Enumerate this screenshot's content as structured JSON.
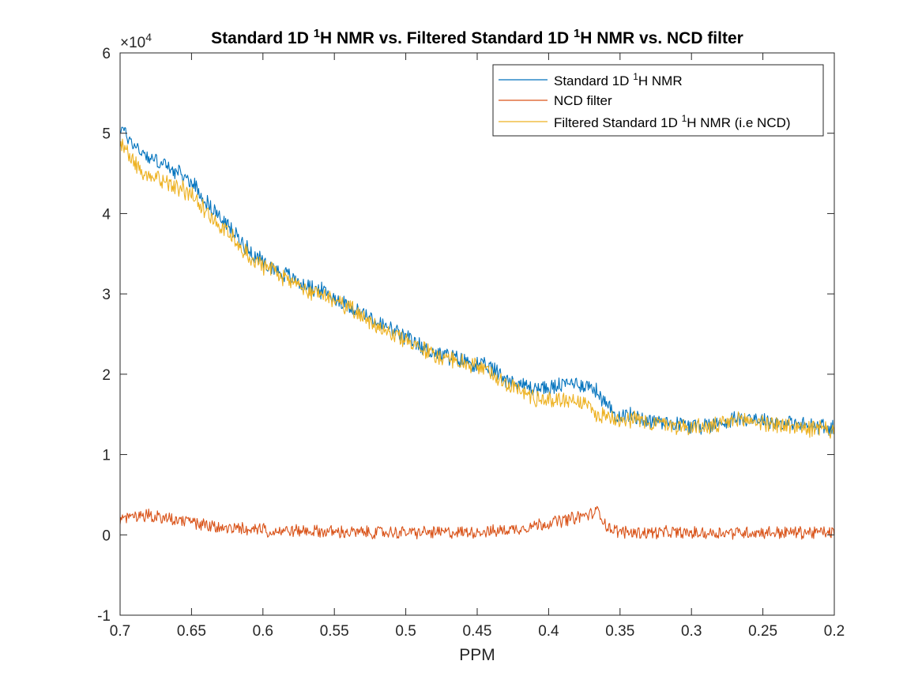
{
  "chart_data": {
    "type": "line",
    "title_parts": [
      "Standard 1D ",
      "1",
      "H NMR vs. Filtered Standard 1D ",
      "1",
      "H NMR vs. NCD filter"
    ],
    "xlabel": "PPM",
    "ylabel": "",
    "xlim": [
      0.7,
      0.2
    ],
    "x_reversed": true,
    "ylim": [
      -10000,
      60000
    ],
    "y_exponent_label": "×10",
    "y_exponent_power": "4",
    "xticks": [
      0.7,
      0.65,
      0.6,
      0.55,
      0.5,
      0.45,
      0.4,
      0.35,
      0.3,
      0.25,
      0.2
    ],
    "xtick_labels": [
      "0.7",
      "0.65",
      "0.6",
      "0.55",
      "0.5",
      "0.45",
      "0.4",
      "0.35",
      "0.3",
      "0.25",
      "0.2"
    ],
    "yticks": [
      -10000,
      0,
      10000,
      20000,
      30000,
      40000,
      50000,
      60000
    ],
    "ytick_labels": [
      "-1",
      "0",
      "1",
      "2",
      "3",
      "4",
      "5",
      "6"
    ],
    "grid": false,
    "legend_position": "top-right",
    "legend": [
      [
        "Standard 1D ",
        "1",
        "H NMR"
      ],
      [
        "NCD filter",
        "",
        ""
      ],
      [
        "Filtered Standard 1D ",
        "1",
        "H NMR (i.e NCD)"
      ]
    ],
    "series": [
      {
        "name": "Standard 1D 1H NMR",
        "color": "#0072BD",
        "x": [
          0.7,
          0.69,
          0.68,
          0.67,
          0.66,
          0.65,
          0.64,
          0.63,
          0.62,
          0.61,
          0.6,
          0.59,
          0.58,
          0.57,
          0.56,
          0.55,
          0.54,
          0.53,
          0.52,
          0.51,
          0.5,
          0.49,
          0.48,
          0.47,
          0.46,
          0.45,
          0.44,
          0.43,
          0.42,
          0.41,
          0.4,
          0.39,
          0.38,
          0.37,
          0.365,
          0.36,
          0.355,
          0.35,
          0.34,
          0.33,
          0.32,
          0.31,
          0.3,
          0.29,
          0.28,
          0.27,
          0.26,
          0.25,
          0.24,
          0.23,
          0.22,
          0.21,
          0.2
        ],
        "values": [
          50800,
          48500,
          47000,
          46200,
          45000,
          44000,
          41500,
          39500,
          37500,
          35500,
          34000,
          33000,
          32000,
          31000,
          30500,
          29500,
          28500,
          27500,
          26500,
          25500,
          24500,
          23500,
          22700,
          22200,
          21700,
          21200,
          20700,
          19500,
          18700,
          18300,
          18200,
          18700,
          19000,
          18300,
          17700,
          16200,
          15200,
          15000,
          14700,
          14300,
          14100,
          13900,
          13600,
          13600,
          13900,
          14500,
          14600,
          14300,
          14000,
          13800,
          13600,
          13500,
          13200
        ]
      },
      {
        "name": "NCD filter",
        "color": "#D95319",
        "x": [
          0.7,
          0.69,
          0.68,
          0.67,
          0.66,
          0.65,
          0.64,
          0.63,
          0.62,
          0.61,
          0.6,
          0.59,
          0.58,
          0.57,
          0.56,
          0.55,
          0.54,
          0.53,
          0.52,
          0.51,
          0.5,
          0.49,
          0.48,
          0.47,
          0.46,
          0.45,
          0.44,
          0.43,
          0.42,
          0.41,
          0.4,
          0.39,
          0.38,
          0.37,
          0.365,
          0.36,
          0.355,
          0.35,
          0.34,
          0.33,
          0.32,
          0.31,
          0.3,
          0.29,
          0.28,
          0.27,
          0.26,
          0.25,
          0.24,
          0.23,
          0.22,
          0.21,
          0.2
        ],
        "values": [
          1800,
          2200,
          2500,
          2000,
          1800,
          1500,
          1200,
          900,
          800,
          700,
          600,
          500,
          500,
          500,
          400,
          400,
          300,
          300,
          300,
          300,
          300,
          300,
          300,
          300,
          300,
          400,
          400,
          600,
          800,
          1200,
          1500,
          1800,
          2200,
          2600,
          3000,
          1200,
          600,
          400,
          300,
          300,
          300,
          300,
          200,
          200,
          300,
          300,
          300,
          300,
          300,
          300,
          300,
          300,
          300
        ]
      },
      {
        "name": "Filtered Standard 1D 1H NMR (i.e NCD)",
        "color": "#EDB120",
        "x": [
          0.7,
          0.69,
          0.68,
          0.67,
          0.66,
          0.65,
          0.64,
          0.63,
          0.62,
          0.61,
          0.6,
          0.59,
          0.58,
          0.57,
          0.56,
          0.55,
          0.54,
          0.53,
          0.52,
          0.51,
          0.5,
          0.49,
          0.48,
          0.47,
          0.46,
          0.45,
          0.44,
          0.43,
          0.42,
          0.41,
          0.4,
          0.39,
          0.38,
          0.37,
          0.365,
          0.36,
          0.355,
          0.35,
          0.34,
          0.33,
          0.32,
          0.31,
          0.3,
          0.29,
          0.28,
          0.27,
          0.26,
          0.25,
          0.24,
          0.23,
          0.22,
          0.21,
          0.2
        ],
        "values": [
          49000,
          46300,
          44500,
          44200,
          43200,
          42500,
          40300,
          38600,
          36700,
          34800,
          33400,
          32500,
          31500,
          30500,
          30100,
          29100,
          28200,
          27200,
          26200,
          25200,
          24200,
          23200,
          22400,
          21900,
          21400,
          20800,
          20300,
          18900,
          17900,
          17100,
          16700,
          16900,
          16800,
          15700,
          14700,
          15000,
          14600,
          14600,
          14400,
          14000,
          13800,
          13600,
          13400,
          13400,
          13600,
          14200,
          14300,
          14000,
          13700,
          13500,
          13300,
          13200,
          12900
        ]
      }
    ]
  }
}
